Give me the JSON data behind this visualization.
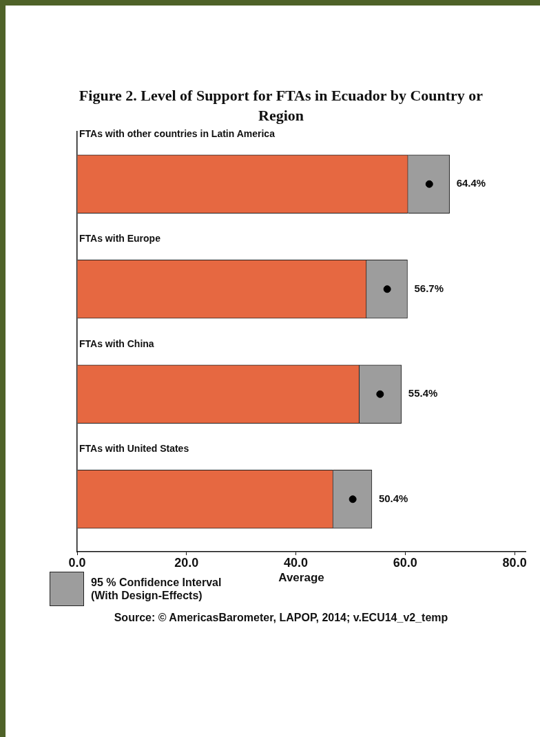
{
  "chart_data": {
    "type": "bar",
    "orientation": "horizontal",
    "stacked": true,
    "title": "Figure 2. Level of Support for FTAs in Ecuador by Country or Region",
    "categories": [
      "FTAs with other countries in Latin America",
      "FTAs with Europe",
      "FTAs with China",
      "FTAs with United States"
    ],
    "series": [
      {
        "type": "bar",
        "color": "#e66841",
        "values": [
          60.5,
          52.9,
          51.6,
          46.8
        ]
      },
      {
        "type": "bar",
        "name": "95 % Confidence Interval (With Design-Effects)",
        "color": "#9d9d9d",
        "values": [
          7.6,
          7.5,
          7.7,
          7.1
        ]
      },
      {
        "type": "scatter",
        "color": "#000000",
        "values": [
          64.4,
          56.7,
          55.4,
          50.4
        ],
        "value_labels": [
          "64.4%",
          "56.7%",
          "55.4%",
          "50.4%"
        ]
      }
    ],
    "xlabel": "Average",
    "xlim": [
      0,
      82
    ],
    "xticks": [
      {
        "value": 0,
        "label": "0.0"
      },
      {
        "value": 20,
        "label": "20.0"
      },
      {
        "value": 40,
        "label": "40.0"
      },
      {
        "value": 60,
        "label": "60.0"
      },
      {
        "value": 80,
        "label": "80.0"
      }
    ],
    "grid": false,
    "marker": "circle",
    "legend": "bottom left",
    "annotations": [
      "Source: © AmericasBarometer, LAPOP, 2014; v.ECU14_v2_temp"
    ]
  }
}
